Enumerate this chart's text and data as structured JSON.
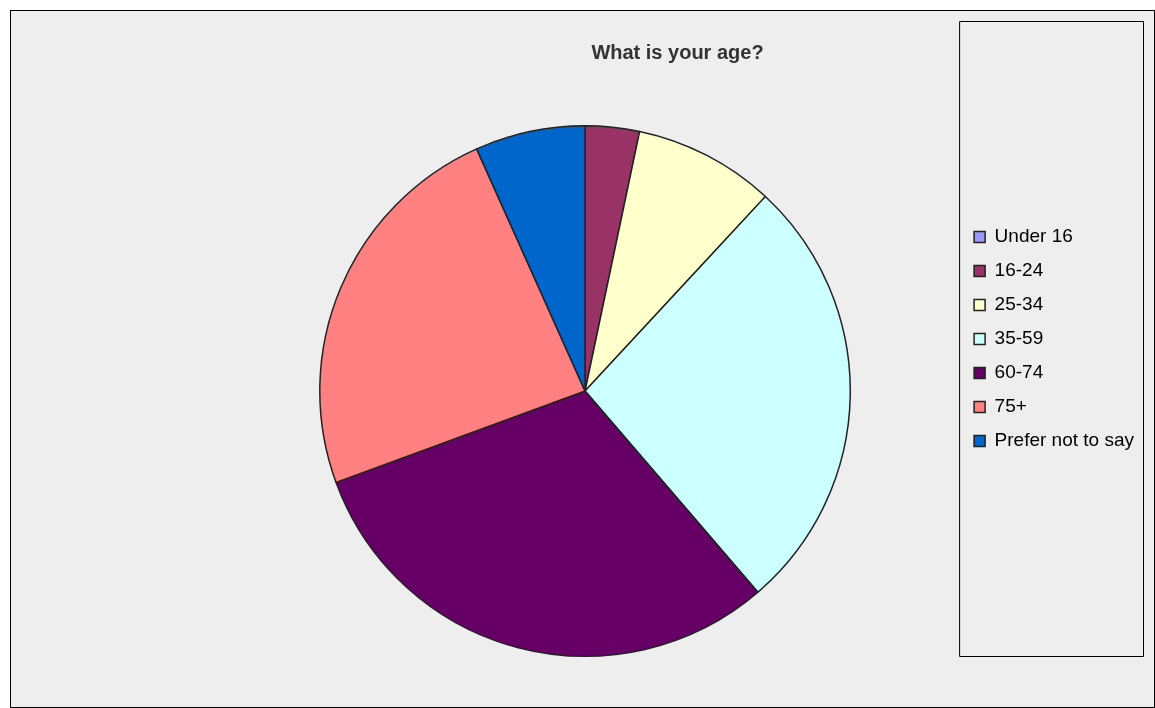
{
  "chart_data": {
    "type": "pie",
    "title": "What is your age?",
    "categories": [
      "Under 16",
      "16-24",
      "25-34",
      "35-59",
      "60-74",
      "75+",
      "Prefer not to say"
    ],
    "values": [
      0,
      3.3,
      8.6,
      26.8,
      30.7,
      23.9,
      6.7
    ],
    "colors": [
      "#9999ff",
      "#993366",
      "#ffffcc",
      "#ccffff",
      "#660066",
      "#ff8080",
      "#0066cc"
    ],
    "legend": "right"
  }
}
